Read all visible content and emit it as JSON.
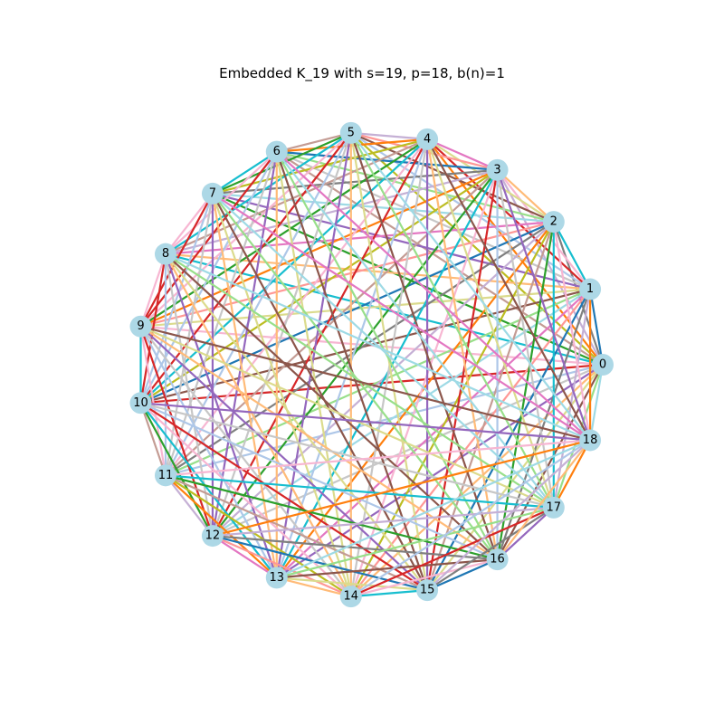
{
  "title": "Embedded K_19 with s=19, p=18, b(n)=1",
  "graph": {
    "type": "complete_graph",
    "node_count": 19,
    "node_labels": [
      "0",
      "1",
      "2",
      "3",
      "4",
      "5",
      "6",
      "7",
      "8",
      "9",
      "10",
      "11",
      "12",
      "13",
      "14",
      "15",
      "16",
      "17",
      "18"
    ],
    "node_color": "#add8e6",
    "edge_palette": [
      "#1f77b4",
      "#ff7f0e",
      "#2ca02c",
      "#d62728",
      "#9467bd",
      "#8c564b",
      "#e377c2",
      "#7f7f7f",
      "#bcbd22",
      "#17becf",
      "#aec7e8",
      "#ffbb78",
      "#98df8a",
      "#ff9896",
      "#c5b0d5",
      "#c49c94",
      "#f7b6d2",
      "#c7c7c7",
      "#dbdb8d",
      "#9edae5"
    ]
  }
}
